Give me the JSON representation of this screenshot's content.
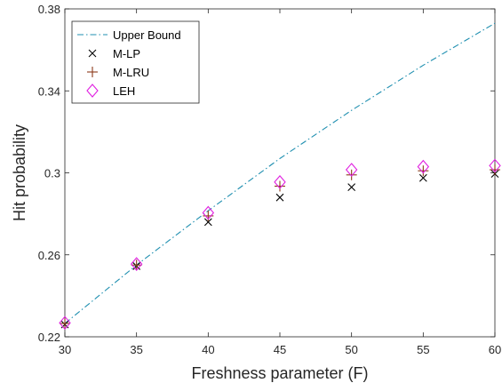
{
  "chart_data": {
    "type": "line",
    "title": "",
    "xlabel": "Freshness parameter (F)",
    "ylabel": "Hit probability",
    "xlim": [
      30,
      60
    ],
    "ylim": [
      0.22,
      0.38
    ],
    "x_ticks": [
      30,
      35,
      40,
      45,
      50,
      55,
      60
    ],
    "y_ticks": [
      0.22,
      0.26,
      0.3,
      0.34,
      0.38
    ],
    "grid": false,
    "legend_position": "top-left",
    "x": [
      30,
      35,
      40,
      45,
      50,
      55,
      60
    ],
    "series": [
      {
        "name": "Upper Bound",
        "kind": "line",
        "style": "dash-dot",
        "color": "#1f8fb0",
        "marker": "none",
        "values": [
          0.2265,
          0.255,
          0.2815,
          0.307,
          0.3305,
          0.3525,
          0.373
        ]
      },
      {
        "name": "M-LP",
        "kind": "markers",
        "color": "#000000",
        "marker": "x",
        "values": [
          0.226,
          0.2545,
          0.276,
          0.288,
          0.293,
          0.2975,
          0.2995
        ]
      },
      {
        "name": "M-LRU",
        "kind": "markers",
        "color": "#8b3a1a",
        "marker": "plus",
        "values": [
          0.2265,
          0.255,
          0.279,
          0.2935,
          0.299,
          0.301,
          0.3015
        ]
      },
      {
        "name": "LEH",
        "kind": "markers",
        "color": "#e020e0",
        "marker": "diamond",
        "values": [
          0.2268,
          0.2555,
          0.2805,
          0.2955,
          0.3015,
          0.303,
          0.3035
        ]
      }
    ]
  }
}
